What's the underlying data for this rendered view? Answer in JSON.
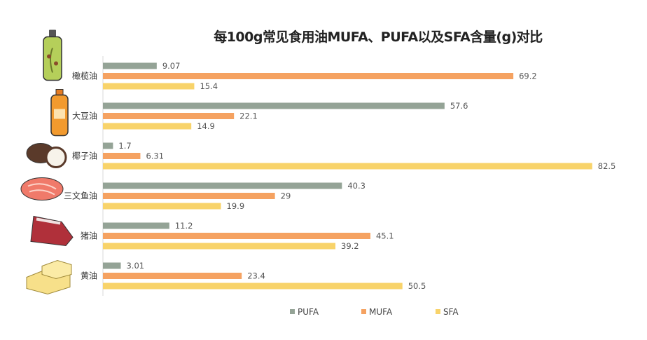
{
  "chart_data": {
    "type": "bar",
    "orientation": "horizontal",
    "title": "每100g常见食用油MUFA、PUFA以及SFA含量(g)对比",
    "categories": [
      "橄榄油",
      "大豆油",
      "椰子油",
      "三文鱼油",
      "猪油",
      "黄油"
    ],
    "category_icons": [
      "olive-oil-bottle-icon",
      "soybean-oil-bottle-icon",
      "coconut-icon",
      "salmon-steak-icon",
      "pork-icon",
      "butter-icon"
    ],
    "series": [
      {
        "name": "PUFA",
        "color": "#94a396",
        "values": [
          9.07,
          57.6,
          1.7,
          40.3,
          11.2,
          3.01
        ]
      },
      {
        "name": "MUFA",
        "color": "#f5a261",
        "values": [
          69.2,
          22.1,
          6.31,
          29,
          45.1,
          23.4
        ]
      },
      {
        "name": "SFA",
        "color": "#f8d36a",
        "values": [
          15.4,
          14.9,
          82.5,
          19.9,
          39.2,
          50.5
        ]
      }
    ],
    "xlim": [
      0,
      90
    ],
    "grid": false,
    "legend": "bottom",
    "data_labels": true
  }
}
